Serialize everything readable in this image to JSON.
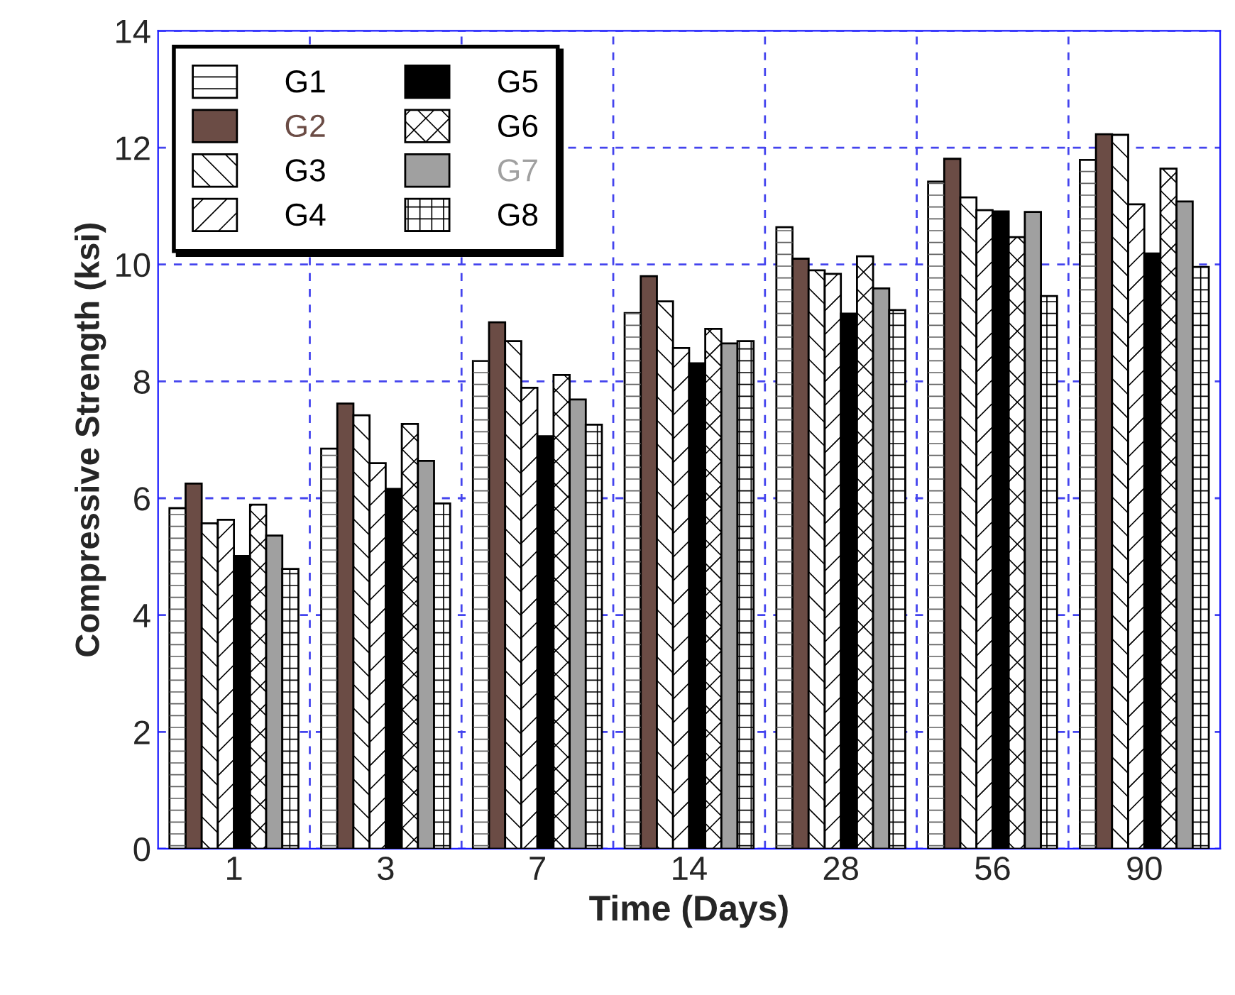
{
  "chart_data": {
    "type": "bar",
    "xlabel": "Time (Days)",
    "ylabel": "Compressive Strength (ksi)",
    "categories": [
      "1",
      "3",
      "7",
      "14",
      "28",
      "56",
      "90"
    ],
    "series": [
      {
        "name": "G1",
        "color": "#ffffff",
        "values": [
          5.83,
          6.85,
          8.35,
          9.17,
          10.64,
          11.42,
          11.79
        ]
      },
      {
        "name": "G2",
        "color": "#6b4c45",
        "values": [
          6.25,
          7.62,
          9.01,
          9.8,
          10.1,
          11.81,
          12.23
        ]
      },
      {
        "name": "G3",
        "color": "#ffffff",
        "values": [
          5.57,
          7.42,
          8.69,
          9.37,
          9.9,
          11.15,
          12.22
        ]
      },
      {
        "name": "G4",
        "color": "#ffffff",
        "values": [
          5.63,
          6.6,
          7.89,
          8.57,
          9.84,
          10.93,
          11.03
        ]
      },
      {
        "name": "G5",
        "color": "#000000",
        "values": [
          5.01,
          6.16,
          7.06,
          8.31,
          9.16,
          10.91,
          10.19
        ]
      },
      {
        "name": "G6",
        "color": "#ffffff",
        "values": [
          5.89,
          7.27,
          8.11,
          8.9,
          10.14,
          10.47,
          11.64
        ]
      },
      {
        "name": "G7",
        "color": "#a0a0a0",
        "values": [
          5.36,
          6.64,
          7.69,
          8.65,
          9.59,
          10.9,
          11.08
        ]
      },
      {
        "name": "G8",
        "color": "#ffffff",
        "values": [
          4.79,
          5.91,
          7.26,
          8.69,
          9.22,
          9.46,
          9.96
        ]
      }
    ],
    "ylim": [
      0,
      14
    ],
    "yticks": [
      0,
      2,
      4,
      6,
      8,
      10,
      12,
      14
    ],
    "grid": true,
    "legend": "top left"
  }
}
